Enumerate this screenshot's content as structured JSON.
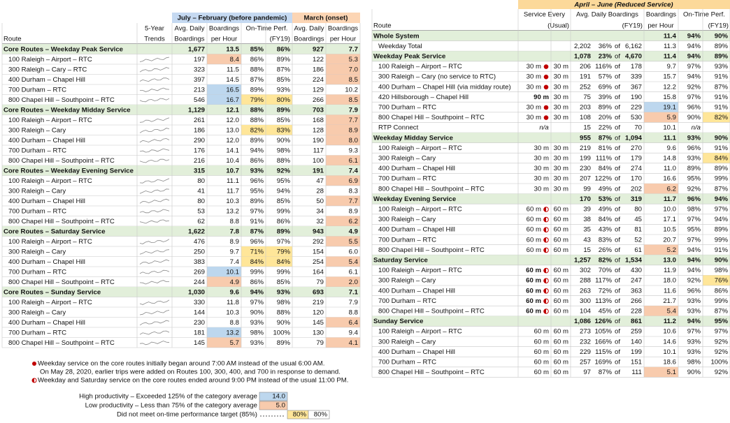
{
  "left": {
    "period": "July – February (before pandemic)",
    "onset": "March (onset)",
    "h2": [
      "5-Year",
      "Avg. Daily",
      "Boardings",
      "On-Time Perf.",
      "Avg. Daily",
      "Boardings"
    ],
    "h3": [
      "Route",
      "Trends",
      "Boardings",
      "per Hour",
      "(FY19)",
      "Boardings",
      "per Hour"
    ],
    "groups": [
      {
        "name": "Core Routes – Weekday Peak Service",
        "cells": [
          "1,677",
          "13.5",
          "85%",
          "86%",
          "927",
          "7.7"
        ],
        "routes": [
          {
            "name": "100 Raleigh – Airport – RTC",
            "cells": [
              "197",
              "8.4",
              "86%",
              "89%",
              "122",
              "5.3"
            ],
            "lo": [
              1,
              5
            ]
          },
          {
            "name": "300 Raleigh – Cary – RTC",
            "cells": [
              "323",
              "11.5",
              "88%",
              "87%",
              "186",
              "7.0"
            ],
            "lo": [
              5
            ]
          },
          {
            "name": "400 Durham – Chapel Hill",
            "cells": [
              "397",
              "14.5",
              "87%",
              "85%",
              "224",
              "8.5"
            ],
            "lo": [
              5
            ]
          },
          {
            "name": "700 Durham – RTC",
            "cells": [
              "213",
              "16.5",
              "89%",
              "93%",
              "129",
              "10.2"
            ],
            "hi": [
              1
            ]
          },
          {
            "name": "800 Chapel Hill – Southpoint – RTC",
            "cells": [
              "546",
              "16.7",
              "79%",
              "80%",
              "266",
              "8.5"
            ],
            "hi": [
              1
            ],
            "late": [
              2,
              3
            ],
            "lo": [
              5
            ]
          }
        ]
      },
      {
        "name": "Core Routes – Weekday Midday Service",
        "cells": [
          "1,129",
          "12.1",
          "88%",
          "89%",
          "703",
          "7.9"
        ],
        "routes": [
          {
            "name": "100 Raleigh – Airport – RTC",
            "cells": [
              "261",
              "12.0",
              "88%",
              "85%",
              "168",
              "7.7"
            ],
            "lo": [
              5
            ]
          },
          {
            "name": "300 Raleigh – Cary",
            "cells": [
              "186",
              "13.0",
              "82%",
              "83%",
              "128",
              "8.9"
            ],
            "late": [
              2,
              3
            ],
            "lo": [
              5
            ]
          },
          {
            "name": "400 Durham – Chapel Hill",
            "cells": [
              "290",
              "12.0",
              "89%",
              "90%",
              "190",
              "8.0"
            ],
            "lo": [
              5
            ]
          },
          {
            "name": "700 Durham – RTC",
            "cells": [
              "176",
              "14.1",
              "94%",
              "98%",
              "117",
              "9.3"
            ]
          },
          {
            "name": "800 Chapel Hill – Southpoint – RTC",
            "cells": [
              "216",
              "10.4",
              "86%",
              "88%",
              "100",
              "6.1"
            ],
            "lo": [
              5
            ]
          }
        ]
      },
      {
        "name": "Core Routes – Weekday Evening Service",
        "cells": [
          "315",
          "10.7",
          "93%",
          "92%",
          "191",
          "7.4"
        ],
        "routes": [
          {
            "name": "100 Raleigh – Airport – RTC",
            "cells": [
              "80",
              "11.1",
              "96%",
              "95%",
              "47",
              "6.9"
            ],
            "lo": [
              5
            ]
          },
          {
            "name": "300 Raleigh – Cary",
            "cells": [
              "41",
              "11.7",
              "95%",
              "94%",
              "28",
              "8.3"
            ]
          },
          {
            "name": "400 Durham – Chapel Hill",
            "cells": [
              "80",
              "10.3",
              "89%",
              "85%",
              "50",
              "7.7"
            ],
            "lo": [
              5
            ]
          },
          {
            "name": "700 Durham – RTC",
            "cells": [
              "53",
              "13.2",
              "97%",
              "99%",
              "34",
              "8.9"
            ]
          },
          {
            "name": "800 Chapel Hill – Southpoint – RTC",
            "cells": [
              "62",
              "8.8",
              "91%",
              "86%",
              "32",
              "6.2"
            ],
            "lo": [
              5
            ]
          }
        ]
      },
      {
        "name": "Core Routes – Saturday Service",
        "cells": [
          "1,622",
          "7.8",
          "87%",
          "89%",
          "943",
          "4.9"
        ],
        "routes": [
          {
            "name": "100 Raleigh – Airport – RTC",
            "cells": [
              "476",
              "8.9",
              "96%",
              "97%",
              "292",
              "5.5"
            ],
            "lo": [
              5
            ]
          },
          {
            "name": "300 Raleigh – Cary",
            "cells": [
              "250",
              "9.7",
              "71%",
              "79%",
              "154",
              "6.0"
            ],
            "late": [
              2,
              3
            ]
          },
          {
            "name": "400 Durham – Chapel Hill",
            "cells": [
              "383",
              "7.4",
              "84%",
              "84%",
              "254",
              "5.4"
            ],
            "late": [
              2,
              3
            ],
            "lo": [
              5
            ]
          },
          {
            "name": "700 Durham – RTC",
            "cells": [
              "269",
              "10.1",
              "99%",
              "99%",
              "164",
              "6.1"
            ],
            "hi": [
              1
            ]
          },
          {
            "name": "800 Chapel Hill – Southpoint – RTC",
            "cells": [
              "244",
              "4.9",
              "86%",
              "85%",
              "79",
              "2.0"
            ],
            "lo": [
              1,
              5
            ]
          }
        ]
      },
      {
        "name": "Core Routes – Sunday Service",
        "cells": [
          "1,030",
          "9.6",
          "94%",
          "93%",
          "693",
          "7.1"
        ],
        "routes": [
          {
            "name": "100 Raleigh – Airport – RTC",
            "cells": [
              "330",
              "11.8",
              "97%",
              "98%",
              "219",
              "7.9"
            ]
          },
          {
            "name": "300 Raleigh – Cary",
            "cells": [
              "144",
              "10.3",
              "90%",
              "88%",
              "120",
              "8.8"
            ]
          },
          {
            "name": "400 Durham – Chapel Hill",
            "cells": [
              "230",
              "8.8",
              "93%",
              "90%",
              "145",
              "6.4"
            ],
            "lo": [
              5
            ]
          },
          {
            "name": "700 Durham – RTC",
            "cells": [
              "181",
              "13.2",
              "98%",
              "100%",
              "130",
              "9.4"
            ],
            "hi": [
              1
            ]
          },
          {
            "name": "800 Chapel Hill – Southpoint – RTC",
            "cells": [
              "145",
              "5.7",
              "93%",
              "89%",
              "79",
              "4.1"
            ],
            "lo": [
              1,
              5
            ]
          }
        ]
      }
    ]
  },
  "right": {
    "period": "April – June (Reduced Service)",
    "of": "of",
    "h2": [
      "Service Every",
      "Avg. Daily Boardings",
      "Boardings",
      "On-Time Perf."
    ],
    "h3": [
      "Route",
      "(Usual)",
      "(FY19)",
      "per Hour",
      "(FY19)"
    ],
    "rows": [
      {
        "name": "Whole System",
        "group": true,
        "cells": [
          null,
          null,
          null,
          null,
          null,
          "11.4",
          "94%",
          "90%"
        ]
      },
      {
        "name": "Weekday Total",
        "cells": [
          null,
          null,
          "2,202",
          "36%",
          "6,162",
          "11.3",
          "94%",
          "89%"
        ],
        "red": [
          3
        ]
      },
      {
        "name": "Weekday Peak Service",
        "group": true,
        "cells": [
          null,
          null,
          "1,078",
          "23%",
          "4,670",
          "11.4",
          "94%",
          "89%"
        ],
        "red": [
          3
        ]
      },
      {
        "name": "100 Raleigh – Airport – RTC",
        "icon": "dot",
        "cells": [
          "30 m",
          "30 m",
          "206",
          "116%",
          "178",
          "9.7",
          "97%",
          "93%"
        ],
        "blue": [
          3
        ]
      },
      {
        "name": "300 Raleigh – Cary",
        "note": "(no service to RTC)",
        "icon": "dot",
        "cells": [
          "30 m",
          "30 m",
          "191",
          "57%",
          "339",
          "15.7",
          "94%",
          "91%"
        ]
      },
      {
        "name": "400 Durham – Chapel Hill",
        "note": "(via midday route)",
        "icon": "dot",
        "cells": [
          "30 m",
          "30 m",
          "252",
          "69%",
          "367",
          "12.2",
          "92%",
          "87%"
        ]
      },
      {
        "name": "420 Hillsborough – Chapel Hill",
        "cells": [
          "90 m",
          "30 m",
          "75",
          "39%",
          "190",
          "15.8",
          "97%",
          "91%"
        ],
        "red": [
          0,
          3
        ]
      },
      {
        "name": "700 Durham – RTC",
        "icon": "dot",
        "cells": [
          "30 m",
          "30 m",
          "203",
          "89%",
          "229",
          "19.1",
          "96%",
          "91%"
        ],
        "hi": [
          5
        ]
      },
      {
        "name": "800 Chapel Hill – Southpoint – RTC",
        "icon": "dot",
        "cells": [
          "30 m",
          "30 m",
          "108",
          "20%",
          "530",
          "5.9",
          "90%",
          "82%"
        ],
        "red": [
          3
        ],
        "lo": [
          5
        ],
        "late": [
          7
        ]
      },
      {
        "name": "RTP Connect",
        "cells": [
          "n/a",
          null,
          "15",
          "22%",
          "70",
          "10.1",
          "n/a",
          null
        ],
        "red": [
          3
        ]
      },
      {
        "name": "Weekday Midday Service",
        "group": true,
        "cells": [
          null,
          null,
          "955",
          "87%",
          "1,094",
          "11.1",
          "93%",
          "90%"
        ]
      },
      {
        "name": "100 Raleigh – Airport – RTC",
        "cells": [
          "30 m",
          "30 m",
          "219",
          "81%",
          "270",
          "9.6",
          "96%",
          "91%"
        ]
      },
      {
        "name": "300 Raleigh – Cary",
        "cells": [
          "30 m",
          "30 m",
          "199",
          "111%",
          "179",
          "14.8",
          "93%",
          "84%"
        ],
        "blue": [
          3
        ],
        "late": [
          7
        ]
      },
      {
        "name": "400 Durham – Chapel Hill",
        "cells": [
          "30 m",
          "30 m",
          "230",
          "84%",
          "274",
          "11.0",
          "89%",
          "89%"
        ]
      },
      {
        "name": "700 Durham – RTC",
        "cells": [
          "30 m",
          "30 m",
          "207",
          "122%",
          "170",
          "16.6",
          "95%",
          "99%"
        ],
        "blue": [
          3
        ]
      },
      {
        "name": "800 Chapel Hill – Southpoint – RTC",
        "cells": [
          "30 m",
          "30 m",
          "99",
          "49%",
          "202",
          "6.2",
          "92%",
          "87%"
        ],
        "red": [
          3
        ],
        "lo": [
          5
        ]
      },
      {
        "name": "Weekday Evening Service",
        "group": true,
        "cells": [
          null,
          null,
          "170",
          "53%",
          "319",
          "11.7",
          "96%",
          "94%"
        ]
      },
      {
        "name": "100 Raleigh – Airport – RTC",
        "icon": "half",
        "cells": [
          "60 m",
          "60 m",
          "39",
          "49%",
          "80",
          "10.0",
          "98%",
          "97%"
        ],
        "red": [
          3
        ]
      },
      {
        "name": "300 Raleigh – Cary",
        "icon": "half",
        "cells": [
          "60 m",
          "60 m",
          "38",
          "84%",
          "45",
          "17.1",
          "97%",
          "94%"
        ]
      },
      {
        "name": "400 Durham – Chapel Hill",
        "icon": "half",
        "cells": [
          "60 m",
          "60 m",
          "35",
          "43%",
          "81",
          "10.5",
          "95%",
          "89%"
        ],
        "red": [
          3
        ]
      },
      {
        "name": "700 Durham – RTC",
        "icon": "half",
        "cells": [
          "60 m",
          "60 m",
          "43",
          "83%",
          "52",
          "20.7",
          "97%",
          "99%"
        ]
      },
      {
        "name": "800 Chapel Hill – Southpoint – RTC",
        "icon": "half",
        "cells": [
          "60 m",
          "60 m",
          "15",
          "26%",
          "61",
          "5.2",
          "94%",
          "91%"
        ],
        "red": [
          3
        ],
        "lo": [
          5
        ]
      },
      {
        "name": "Saturday Service",
        "group": true,
        "cells": [
          null,
          null,
          "1,257",
          "82%",
          "1,534",
          "13.0",
          "94%",
          "90%"
        ]
      },
      {
        "name": "100 Raleigh – Airport – RTC",
        "icon": "half",
        "cells": [
          "60 m",
          "60 m",
          "302",
          "70%",
          "430",
          "11.9",
          "94%",
          "98%"
        ],
        "red": [
          0
        ]
      },
      {
        "name": "300 Raleigh – Cary",
        "icon": "half",
        "cells": [
          "60 m",
          "60 m",
          "288",
          "117%",
          "247",
          "18.0",
          "92%",
          "76%"
        ],
        "red": [
          0
        ],
        "blue": [
          3
        ],
        "late": [
          7
        ]
      },
      {
        "name": "400 Durham – Chapel Hill",
        "icon": "half",
        "cells": [
          "60 m",
          "60 m",
          "263",
          "72%",
          "363",
          "11.6",
          "96%",
          "86%"
        ],
        "red": [
          0
        ]
      },
      {
        "name": "700 Durham – RTC",
        "icon": "half",
        "cells": [
          "60 m",
          "60 m",
          "300",
          "113%",
          "266",
          "21.7",
          "93%",
          "99%"
        ],
        "red": [
          0
        ],
        "blue": [
          3
        ]
      },
      {
        "name": "800 Chapel Hill – Southpoint – RTC",
        "icon": "half",
        "cells": [
          "60 m",
          "60 m",
          "104",
          "45%",
          "228",
          "5.4",
          "93%",
          "87%"
        ],
        "red": [
          0,
          3
        ],
        "lo": [
          5
        ]
      },
      {
        "name": "Sunday Service",
        "group": true,
        "cells": [
          null,
          null,
          "1,086",
          "126%",
          "861",
          "11.2",
          "94%",
          "95%"
        ],
        "blue": [
          3
        ]
      },
      {
        "name": "100 Raleigh – Airport – RTC",
        "cells": [
          "60 m",
          "60 m",
          "273",
          "105%",
          "259",
          "10.6",
          "97%",
          "97%"
        ],
        "blue": [
          3
        ]
      },
      {
        "name": "300 Raleigh – Cary",
        "cells": [
          "60 m",
          "60 m",
          "232",
          "166%",
          "140",
          "14.6",
          "93%",
          "92%"
        ],
        "blue": [
          3
        ]
      },
      {
        "name": "400 Durham – Chapel Hill",
        "cells": [
          "60 m",
          "60 m",
          "229",
          "115%",
          "199",
          "10.1",
          "93%",
          "92%"
        ],
        "blue": [
          3
        ]
      },
      {
        "name": "700 Durham – RTC",
        "cells": [
          "60 m",
          "60 m",
          "257",
          "169%",
          "151",
          "18.6",
          "98%",
          "100%"
        ],
        "blue": [
          3
        ]
      },
      {
        "name": "800 Chapel Hill – Southpoint – RTC",
        "cells": [
          "60 m",
          "60 m",
          "97",
          "87%",
          "111",
          "5.1",
          "90%",
          "92%"
        ],
        "lo": [
          5
        ]
      }
    ]
  },
  "notes": [
    "Weekday service on the core routes initially began around 7:00 AM instead of the usual 6:00 AM.",
    "On May 28, 2020, earlier trips were added on Routes 100, 300, 400, and 700 in response to demand.",
    "Weekday and Saturday service on the core routes ended around 9:00 PM instead of the usual 11:00 PM."
  ],
  "legend": {
    "high": "High productivity – Exceeded 125% of the category average",
    "high_example": "14.0",
    "low": "Low productivity – Less than 75% of the category average",
    "low_example": "5.0",
    "late": "Did not meet on-time performance target (85%)",
    "late_examples": [
      "80%",
      "80%"
    ]
  }
}
